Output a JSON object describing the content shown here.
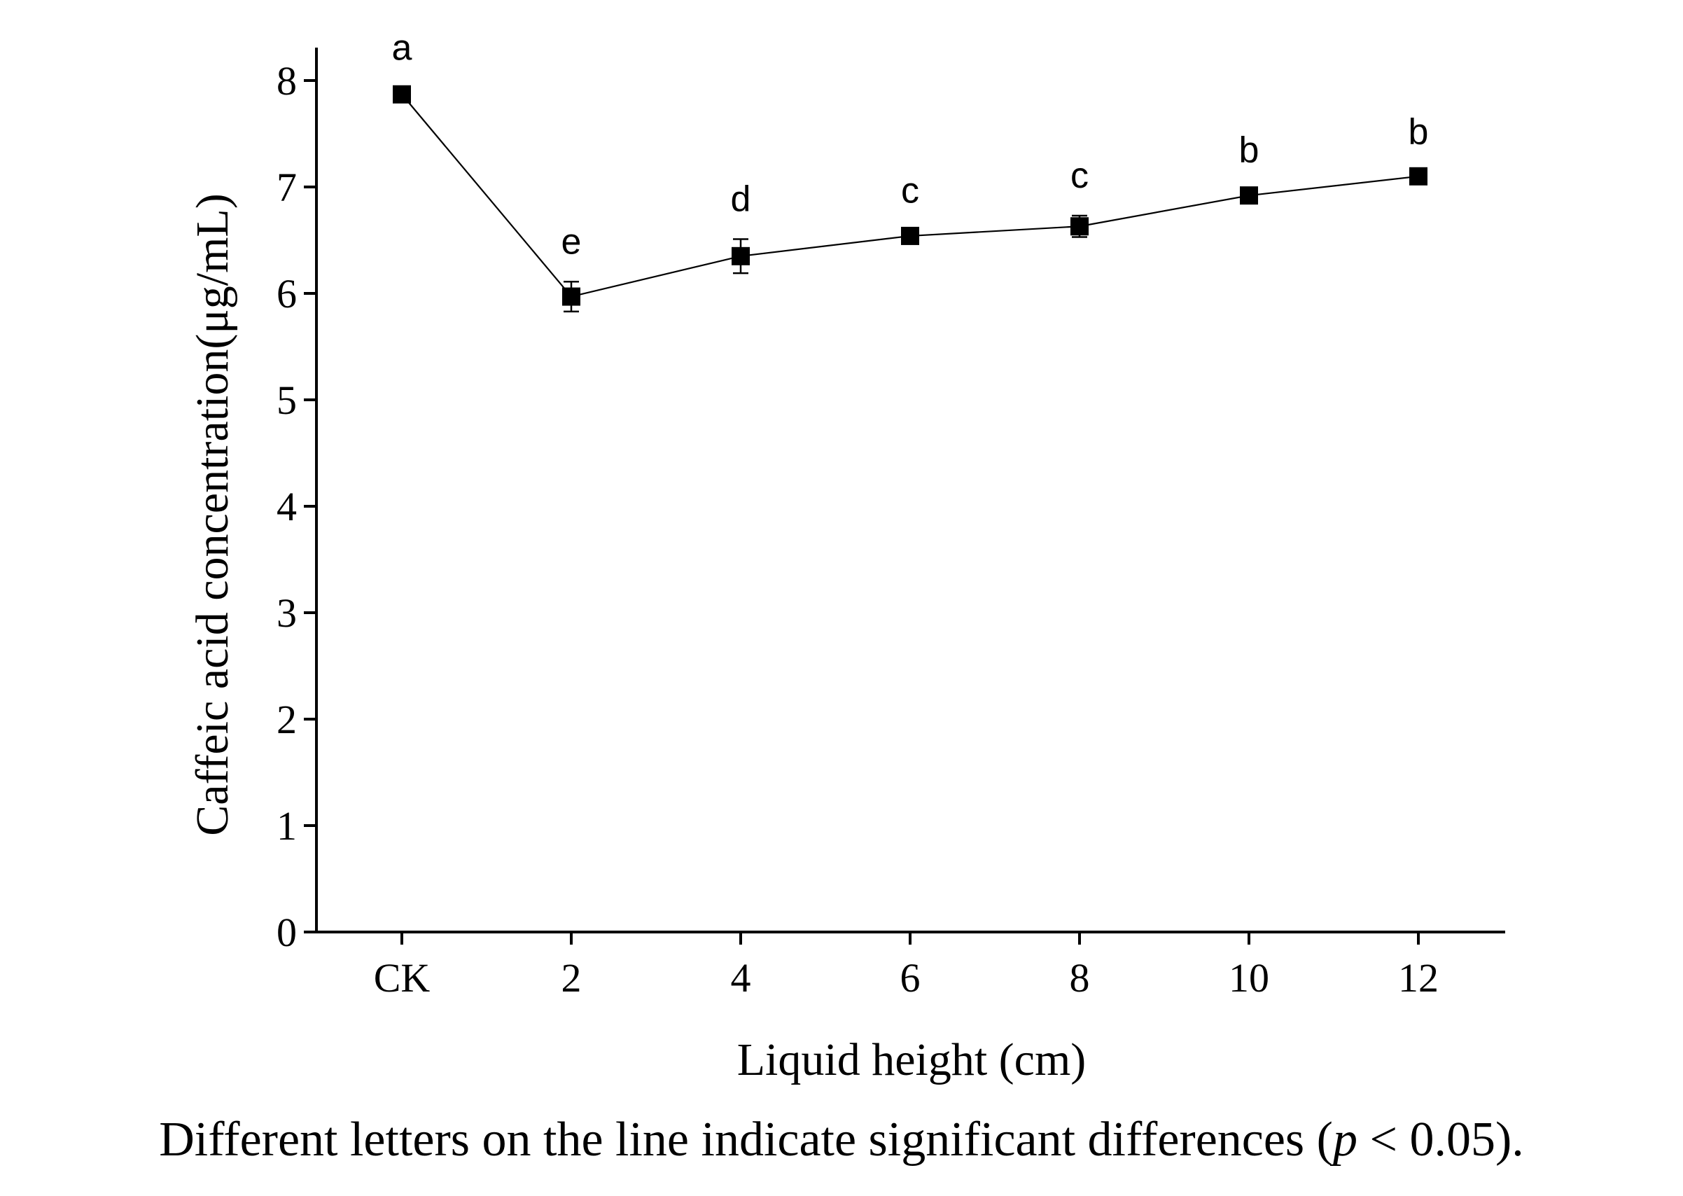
{
  "chart_data": {
    "type": "line",
    "categories": [
      "CK",
      "2",
      "4",
      "6",
      "8",
      "10",
      "12"
    ],
    "series": [
      {
        "values": [
          7.87,
          5.97,
          6.35,
          6.54,
          6.63,
          6.92,
          7.1
        ],
        "errors": [
          0.06,
          0.14,
          0.16,
          0.05,
          0.1,
          0.05,
          0.04
        ],
        "marker": "square"
      }
    ],
    "significance_letters": [
      "a",
      "e",
      "d",
      "c",
      "c",
      "b",
      "b"
    ],
    "xlabel": "Liquid height (cm)",
    "ylabel": "Caffeic acid concentration(μg/mL)",
    "ylim": [
      0,
      8.3
    ],
    "yticks": [
      0,
      1,
      2,
      3,
      4,
      5,
      6,
      7,
      8
    ],
    "grid": false,
    "legend": "none",
    "note": {
      "prefix": "Different letters on the line indicate significant differences (",
      "italic": "p",
      "suffix": " < 0.05)."
    },
    "colors": {
      "line": "#000000",
      "marker": "#000000"
    }
  }
}
